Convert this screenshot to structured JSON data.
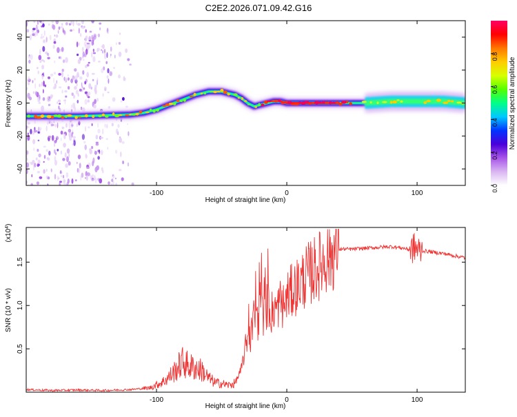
{
  "title": "C2E2.2026.071.09.42.G16",
  "chart_data": [
    {
      "type": "heatmap",
      "xlabel": "Height of straight line (km)",
      "ylabel": "Frequency (Hz)",
      "xlim": [
        -200,
        137
      ],
      "ylim": [
        -50,
        50
      ],
      "xticks": [
        -100,
        0,
        100
      ],
      "xtick_labels": [
        "-100",
        "0",
        "100"
      ],
      "yticks": [
        -40,
        -20,
        0,
        20,
        40
      ],
      "ytick_labels": [
        "-40",
        "-20",
        "0",
        "20",
        "40"
      ],
      "ridge": {
        "x": [
          -200,
          -180,
          -160,
          -140,
          -120,
          -110,
          -100,
          -90,
          -80,
          -70,
          -60,
          -50,
          -45,
          -40,
          -35,
          -30,
          -25,
          -20,
          -15,
          -10,
          -5,
          0,
          10,
          20,
          40,
          60,
          80,
          100,
          120,
          137
        ],
        "y": [
          -8,
          -8,
          -8,
          -7.5,
          -7,
          -6,
          -4,
          -1,
          2,
          5,
          7,
          7,
          6,
          5,
          3,
          0,
          -2,
          -1,
          0,
          1,
          1,
          0,
          0,
          0,
          0,
          0,
          1,
          1,
          1,
          0
        ]
      },
      "colorbar": {
        "label": "Normalized spectral amplitude",
        "range": [
          0,
          1
        ],
        "ticks": [
          0.0,
          0.2,
          0.4,
          0.6,
          0.8
        ],
        "tick_labels": [
          "0.0",
          "0.2",
          "0.4",
          "0.6",
          "0.8"
        ],
        "colors": [
          "#ffffff",
          "#d9b6f2",
          "#a855e8",
          "#4a00d9",
          "#0033ff",
          "#00c8ff",
          "#00ff88",
          "#55ff00",
          "#d8ff00",
          "#ffcc00",
          "#ff7700",
          "#ff0000",
          "#ff0066"
        ]
      },
      "noise_region_x": [
        -200,
        -115
      ]
    },
    {
      "type": "line",
      "xlabel": "Height of straight line (km)",
      "ylabel": "SNR (10 * v/v)",
      "y_scale_label": "(x10",
      "y_scale_exponent": "4",
      "xlim": [
        -200,
        137
      ],
      "ylim": [
        0,
        19000
      ],
      "xticks": [
        -100,
        0,
        100
      ],
      "xtick_labels": [
        "-100",
        "0",
        "100"
      ],
      "yticks": [
        5000,
        10000,
        15000
      ],
      "ytick_labels": [
        "0.5",
        "1.0",
        "1.5"
      ],
      "color": "#ee3333",
      "series": [
        {
          "name": "SNR",
          "x": [
            -200,
            -180,
            -160,
            -140,
            -120,
            -105,
            -95,
            -90,
            -85,
            -80,
            -75,
            -70,
            -65,
            -60,
            -55,
            -50,
            -45,
            -40,
            -35,
            -32,
            -30,
            -28,
            -25,
            -22,
            -20,
            -18,
            -16,
            -14,
            -12,
            -10,
            -8,
            -5,
            -2,
            0,
            5,
            10,
            15,
            20,
            25,
            30,
            35,
            40,
            45,
            50,
            60,
            70,
            80,
            90,
            95,
            98,
            100,
            102,
            105,
            110,
            120,
            130,
            137
          ],
          "y": [
            300,
            200,
            250,
            200,
            300,
            500,
            1200,
            1800,
            2600,
            3500,
            3000,
            2800,
            2500,
            1600,
            1100,
            1000,
            800,
            1000,
            2500,
            5000,
            6500,
            6000,
            9000,
            8000,
            11000,
            7500,
            9500,
            10500,
            9000,
            10000,
            9500,
            10500,
            9800,
            11000,
            11800,
            12600,
            13400,
            14000,
            14600,
            15500,
            16000,
            16500,
            16500,
            16500,
            16600,
            16700,
            16800,
            16600,
            16400,
            16700,
            16500,
            16300,
            16300,
            16200,
            16000,
            15700,
            15500
          ]
        }
      ]
    }
  ]
}
